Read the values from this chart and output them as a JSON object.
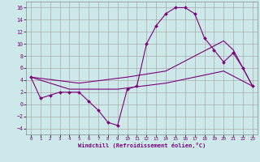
{
  "xlabel": "Windchill (Refroidissement éolien,°C)",
  "background_color": "#cce8e8",
  "grid_color": "#aaaaaa",
  "line_color": "#7b007b",
  "xlim": [
    -0.5,
    23.5
  ],
  "ylim": [
    -5,
    17
  ],
  "xticks": [
    0,
    1,
    2,
    3,
    4,
    5,
    6,
    7,
    8,
    9,
    10,
    11,
    12,
    13,
    14,
    15,
    16,
    17,
    18,
    19,
    20,
    21,
    22,
    23
  ],
  "yticks": [
    -4,
    -2,
    0,
    2,
    4,
    6,
    8,
    10,
    12,
    14,
    16
  ],
  "line1_x": [
    0,
    1,
    2,
    3,
    4,
    5,
    6,
    7,
    8,
    9,
    10,
    11,
    12,
    13,
    14,
    15,
    16,
    17,
    18,
    19,
    20,
    21,
    22,
    23
  ],
  "line1_y": [
    4.5,
    1.0,
    1.5,
    2.0,
    2.0,
    2.0,
    0.5,
    -1.0,
    -3.0,
    -3.5,
    2.5,
    3.0,
    10.0,
    13.0,
    15.0,
    16.0,
    16.0,
    15.0,
    11.0,
    9.0,
    7.0,
    8.5,
    6.0,
    3.0
  ],
  "line2_x": [
    0,
    4,
    9,
    14,
    17,
    20,
    23
  ],
  "line2_y": [
    4.5,
    2.5,
    2.5,
    3.5,
    4.5,
    5.5,
    3.0
  ],
  "line3_x": [
    0,
    5,
    10,
    14,
    17,
    20,
    21,
    23
  ],
  "line3_y": [
    4.5,
    3.5,
    4.5,
    5.5,
    8.0,
    10.5,
    9.0,
    3.0
  ]
}
